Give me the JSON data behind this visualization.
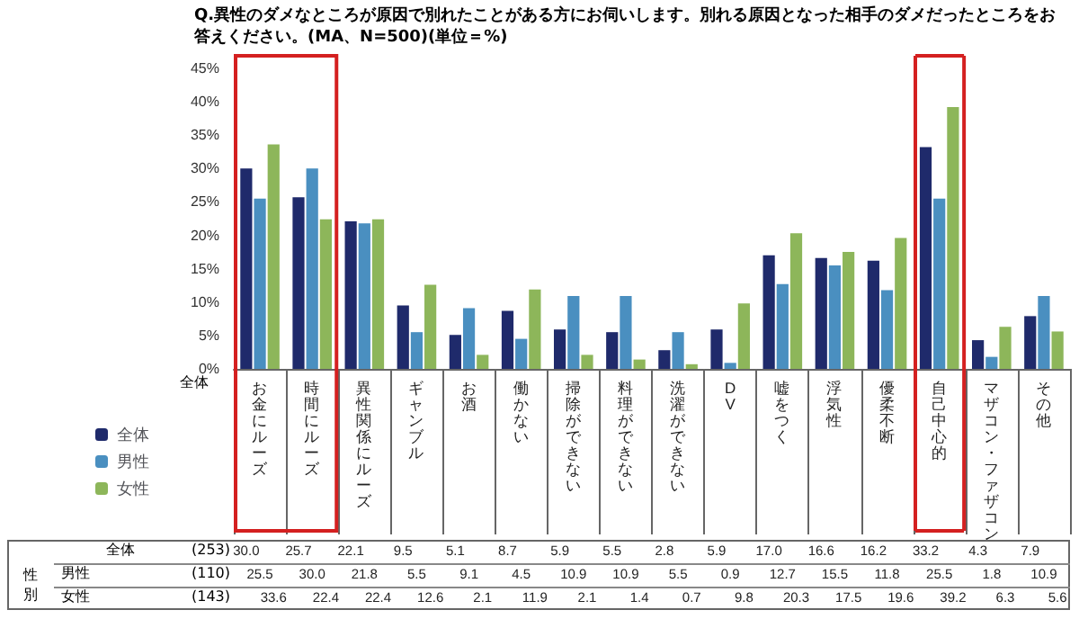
{
  "chart_data": {
    "type": "bar",
    "title": "Q.異性のダメなところが原因で別れたことがある方にお伺いします。別れる原因となった相手のダメだったところをお答えください。(MA、N=500)(単位＝%)",
    "categories": [
      "お金にルーズ",
      "時間にルーズ",
      "異性関係にルーズ",
      "ギャンブル",
      "お酒",
      "働かない",
      "掃除ができない",
      "料理ができない",
      "洗濯ができない",
      "DV",
      "嘘をつく",
      "浮気性",
      "優柔不断",
      "自己中心的",
      "マザコン・ファザコン",
      "その他"
    ],
    "series": [
      {
        "name": "全体",
        "color": "#1f2a6b",
        "values": [
          30.0,
          25.7,
          22.1,
          9.5,
          5.1,
          8.7,
          5.9,
          5.5,
          2.8,
          5.9,
          17.0,
          16.6,
          16.2,
          33.2,
          4.3,
          7.9
        ],
        "value_labels": [
          "30.0",
          "25.7",
          "22.1",
          "9.5",
          "5.1",
          "8.7",
          "5.9",
          "5.5",
          "2.8",
          "5.9",
          "17.0",
          "16.6",
          "16.2",
          "33.2",
          "4.3",
          "7.9"
        ]
      },
      {
        "name": "男性",
        "color": "#4a8fc0",
        "values": [
          25.5,
          30.0,
          21.8,
          5.5,
          9.1,
          4.5,
          10.9,
          10.9,
          5.5,
          0.9,
          12.7,
          15.5,
          11.8,
          25.5,
          1.8,
          10.9
        ],
        "value_labels": [
          "25.5",
          "30.0",
          "21.8",
          "5.5",
          "9.1",
          "4.5",
          "10.9",
          "10.9",
          "5.5",
          "0.9",
          "12.7",
          "15.5",
          "11.8",
          "25.5",
          "1.8",
          "10.9"
        ]
      },
      {
        "name": "女性",
        "color": "#8db65a",
        "values": [
          33.6,
          22.4,
          22.4,
          12.6,
          2.1,
          11.9,
          2.1,
          1.4,
          0.7,
          9.8,
          20.3,
          17.5,
          19.6,
          39.2,
          6.3,
          5.6
        ],
        "value_labels": [
          "33.6",
          "22.4",
          "22.4",
          "12.6",
          "2.1",
          "11.9",
          "2.1",
          "1.4",
          "0.7",
          "9.8",
          "20.3",
          "17.5",
          "19.6",
          "39.2",
          "6.3",
          "5.6"
        ]
      }
    ],
    "ylim": [
      0,
      45
    ],
    "yticks": [
      {
        "value": 0,
        "label": "0%"
      },
      {
        "value": 5,
        "label": "5%"
      },
      {
        "value": 10,
        "label": "10%"
      },
      {
        "value": 15,
        "label": "15%"
      },
      {
        "value": 20,
        "label": "20%"
      },
      {
        "value": 25,
        "label": "25%"
      },
      {
        "value": 30,
        "label": "30%"
      },
      {
        "value": 35,
        "label": "35%"
      },
      {
        "value": 40,
        "label": "40%"
      },
      {
        "value": 45,
        "label": "45%"
      }
    ],
    "annotations": [
      "全体",
      "(253)",
      "(110)",
      "(143)",
      "性別"
    ],
    "legend": "left",
    "grid": false
  }
}
